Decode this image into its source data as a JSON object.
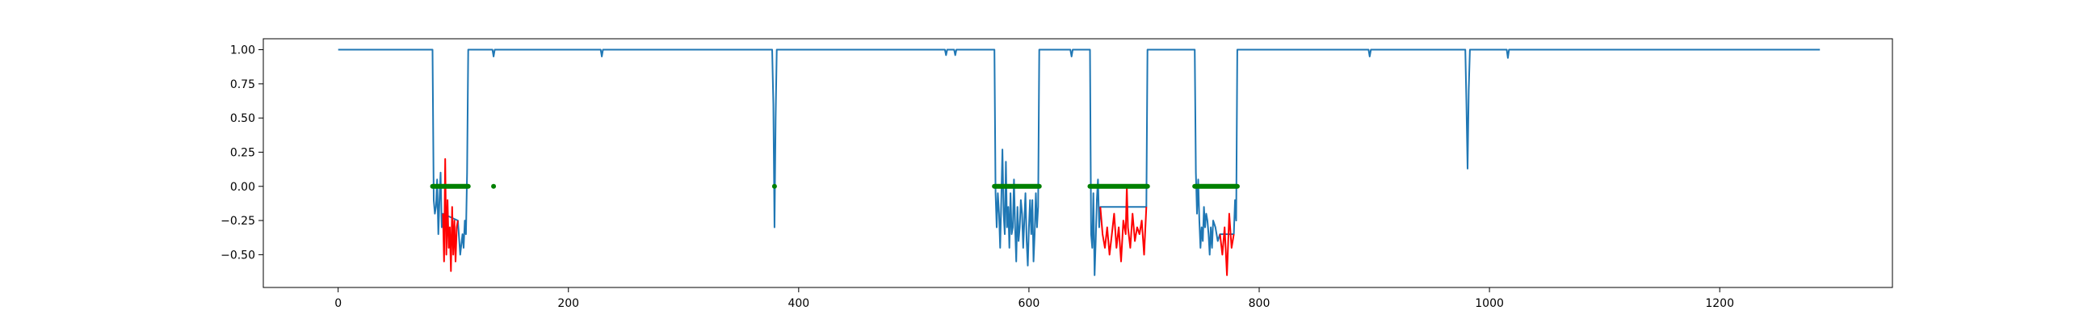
{
  "chart_data": {
    "type": "line",
    "title": "",
    "xlabel": "",
    "ylabel": "",
    "xlim": [
      -65,
      1350
    ],
    "ylim": [
      -0.74,
      1.08
    ],
    "x_ticks": [
      0,
      200,
      400,
      600,
      800,
      1000,
      1200
    ],
    "y_ticks": [
      -0.5,
      -0.25,
      0.0,
      0.25,
      0.5,
      0.75,
      1.0
    ],
    "x_tick_labels": [
      "0",
      "200",
      "400",
      "600",
      "800",
      "1000",
      "1200"
    ],
    "y_tick_labels": [
      "−0.50",
      "−0.25",
      "0.00",
      "0.25",
      "0.50",
      "0.75",
      "1.00"
    ],
    "grid": false,
    "colors": {
      "main": "#1f77b4",
      "highlight": "#ff0000",
      "markers": "#008000"
    },
    "series": [
      {
        "role": "main-line",
        "points": [
          [
            0,
            1
          ],
          [
            82,
            1
          ],
          [
            83,
            -0.1
          ],
          [
            84,
            -0.2
          ],
          [
            85,
            -0.15
          ],
          [
            86,
            0.05
          ],
          [
            87,
            -0.35
          ],
          [
            88,
            -0.1
          ],
          [
            89,
            0.1
          ],
          [
            90,
            -0.3
          ],
          [
            91,
            -0.2
          ],
          [
            104,
            -0.25
          ],
          [
            106,
            -0.5
          ],
          [
            108,
            -0.35
          ],
          [
            109,
            -0.45
          ],
          [
            110,
            -0.25
          ],
          [
            111,
            -0.35
          ],
          [
            112,
            0.1
          ],
          [
            113,
            1
          ],
          [
            134,
            1
          ],
          [
            135,
            0.95
          ],
          [
            136,
            1
          ],
          [
            228,
            1
          ],
          [
            229,
            0.95
          ],
          [
            230,
            1
          ],
          [
            377,
            1
          ],
          [
            378,
            0.6
          ],
          [
            379,
            -0.3
          ],
          [
            380,
            0.5
          ],
          [
            381,
            1
          ],
          [
            527,
            1
          ],
          [
            528,
            0.96
          ],
          [
            529,
            1
          ],
          [
            535,
            1
          ],
          [
            536,
            0.96
          ],
          [
            537,
            1
          ],
          [
            570,
            1
          ],
          [
            571,
            -0.05
          ],
          [
            572,
            -0.3
          ],
          [
            573,
            -0.05
          ],
          [
            574,
            -0.2
          ],
          [
            575,
            -0.45
          ],
          [
            576,
            -0.1
          ],
          [
            577,
            0.27
          ],
          [
            578,
            -0.2
          ],
          [
            579,
            -0.35
          ],
          [
            580,
            0.18
          ],
          [
            581,
            -0.3
          ],
          [
            582,
            -0.15
          ],
          [
            583,
            -0.45
          ],
          [
            584,
            -0.05
          ],
          [
            585,
            -0.35
          ],
          [
            586,
            -0.3
          ],
          [
            587,
            0.05
          ],
          [
            588,
            -0.3
          ],
          [
            589,
            -0.55
          ],
          [
            590,
            -0.15
          ],
          [
            591,
            -0.4
          ],
          [
            592,
            -0.3
          ],
          [
            593,
            -0.1
          ],
          [
            594,
            -0.2
          ],
          [
            595,
            -0.45
          ],
          [
            596,
            -0.25
          ],
          [
            597,
            -0.05
          ],
          [
            598,
            -0.4
          ],
          [
            599,
            -0.58
          ],
          [
            600,
            -0.3
          ],
          [
            601,
            -0.1
          ],
          [
            602,
            -0.35
          ],
          [
            603,
            -0.1
          ],
          [
            604,
            -0.55
          ],
          [
            605,
            -0.35
          ],
          [
            606,
            -0.05
          ],
          [
            607,
            -0.3
          ],
          [
            608,
            -0.15
          ],
          [
            609,
            1
          ],
          [
            636,
            1
          ],
          [
            637,
            0.95
          ],
          [
            638,
            1
          ],
          [
            653,
            1
          ],
          [
            654,
            -0.35
          ],
          [
            655,
            -0.45
          ],
          [
            656,
            -0.05
          ],
          [
            657,
            -0.65
          ],
          [
            658,
            -0.4
          ],
          [
            659,
            -0.1
          ],
          [
            660,
            0.05
          ],
          [
            661,
            -0.3
          ],
          [
            662,
            -0.15
          ],
          [
            702,
            -0.15
          ],
          [
            703,
            1
          ],
          [
            744,
            1
          ],
          [
            745,
            0.1
          ],
          [
            746,
            -0.2
          ],
          [
            747,
            0.05
          ],
          [
            748,
            -0.25
          ],
          [
            749,
            -0.45
          ],
          [
            750,
            -0.3
          ],
          [
            751,
            -0.4
          ],
          [
            752,
            -0.15
          ],
          [
            753,
            -0.3
          ],
          [
            754,
            -0.2
          ],
          [
            755,
            -0.25
          ],
          [
            756,
            -0.35
          ],
          [
            757,
            -0.5
          ],
          [
            758,
            -0.3
          ],
          [
            759,
            -0.45
          ],
          [
            760,
            -0.25
          ],
          [
            762,
            -0.3
          ],
          [
            764,
            -0.4
          ],
          [
            766,
            -0.35
          ],
          [
            778,
            -0.35
          ],
          [
            779,
            -0.1
          ],
          [
            780,
            -0.25
          ],
          [
            781,
            1
          ],
          [
            895,
            1
          ],
          [
            896,
            0.95
          ],
          [
            897,
            1
          ],
          [
            979,
            1
          ],
          [
            980,
            0.6
          ],
          [
            981,
            0.13
          ],
          [
            982,
            0.7
          ],
          [
            983,
            1
          ],
          [
            1015,
            1
          ],
          [
            1016,
            0.94
          ],
          [
            1017,
            1
          ],
          [
            1287,
            1
          ]
        ]
      },
      {
        "role": "highlight-line",
        "segments": [
          [
            [
              91,
              -0.2
            ],
            [
              92,
              -0.55
            ],
            [
              93,
              0.2
            ],
            [
              94,
              -0.5
            ],
            [
              95,
              -0.1
            ],
            [
              96,
              -0.45
            ],
            [
              97,
              -0.3
            ],
            [
              98,
              -0.62
            ],
            [
              99,
              -0.15
            ],
            [
              100,
              -0.5
            ],
            [
              101,
              -0.25
            ],
            [
              102,
              -0.55
            ],
            [
              103,
              -0.3
            ],
            [
              104,
              -0.25
            ]
          ],
          [
            [
              662,
              -0.15
            ],
            [
              664,
              -0.35
            ],
            [
              666,
              -0.45
            ],
            [
              668,
              -0.3
            ],
            [
              670,
              -0.5
            ],
            [
              672,
              -0.35
            ],
            [
              674,
              -0.2
            ],
            [
              676,
              -0.45
            ],
            [
              678,
              -0.3
            ],
            [
              680,
              -0.55
            ],
            [
              682,
              -0.25
            ],
            [
              684,
              -0.35
            ],
            [
              685,
              0.0
            ],
            [
              686,
              -0.3
            ],
            [
              688,
              -0.45
            ],
            [
              690,
              -0.2
            ],
            [
              692,
              -0.4
            ],
            [
              694,
              -0.3
            ],
            [
              696,
              -0.35
            ],
            [
              698,
              -0.25
            ],
            [
              700,
              -0.5
            ],
            [
              702,
              -0.15
            ]
          ],
          [
            [
              766,
              -0.35
            ],
            [
              768,
              -0.5
            ],
            [
              770,
              -0.3
            ],
            [
              772,
              -0.65
            ],
            [
              774,
              -0.2
            ],
            [
              776,
              -0.45
            ],
            [
              778,
              -0.35
            ]
          ]
        ]
      },
      {
        "role": "zero-markers",
        "ranges": [
          [
            82,
            113
          ],
          [
            570,
            609
          ],
          [
            653,
            703
          ],
          [
            744,
            781
          ]
        ],
        "points": [
          135,
          379
        ]
      }
    ]
  }
}
